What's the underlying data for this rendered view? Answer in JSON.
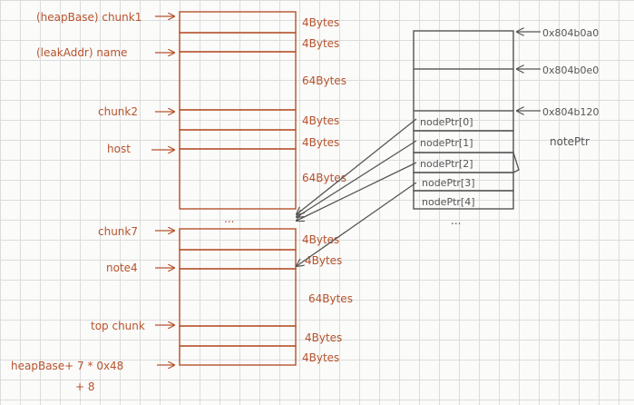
{
  "heap_labels": {
    "chunk1": "(heapBase) chunk1",
    "name": "(leakAddr) name",
    "chunk2": "chunk2",
    "host": "host",
    "chunk7": "chunk7",
    "note4": "note4",
    "top_chunk": "top chunk",
    "heapbase_line1": "heapBase+ 7 * 0x48",
    "heapbase_line2": "+ 8"
  },
  "heap_sizes": {
    "s1": "4Bytes",
    "s2": "4Bytes",
    "s3": "64Bytes",
    "s4": "4Bytes",
    "s5": "4Bytes",
    "s6": "64Bytes",
    "s7": "4Bytes",
    "s8": "4Bytes",
    "s9": "64Bytes",
    "s10": "4Bytes",
    "s11": "4Bytes"
  },
  "heap_ellipsis": "...",
  "nodeptr_array": {
    "addr1": "0x804b0a0",
    "addr2": "0x804b0e0",
    "addr3": "0x804b120",
    "entries": [
      "nodePtr[0]",
      "nodePtr[1]",
      "nodePtr[2]",
      "nodePtr[3]",
      "nodePtr[4]"
    ],
    "label": "notePtr",
    "ellipsis": "..."
  },
  "colors": {
    "heap_ink": "#b6532c",
    "array_ink": "#555555",
    "grid": "#dcdcdc"
  }
}
